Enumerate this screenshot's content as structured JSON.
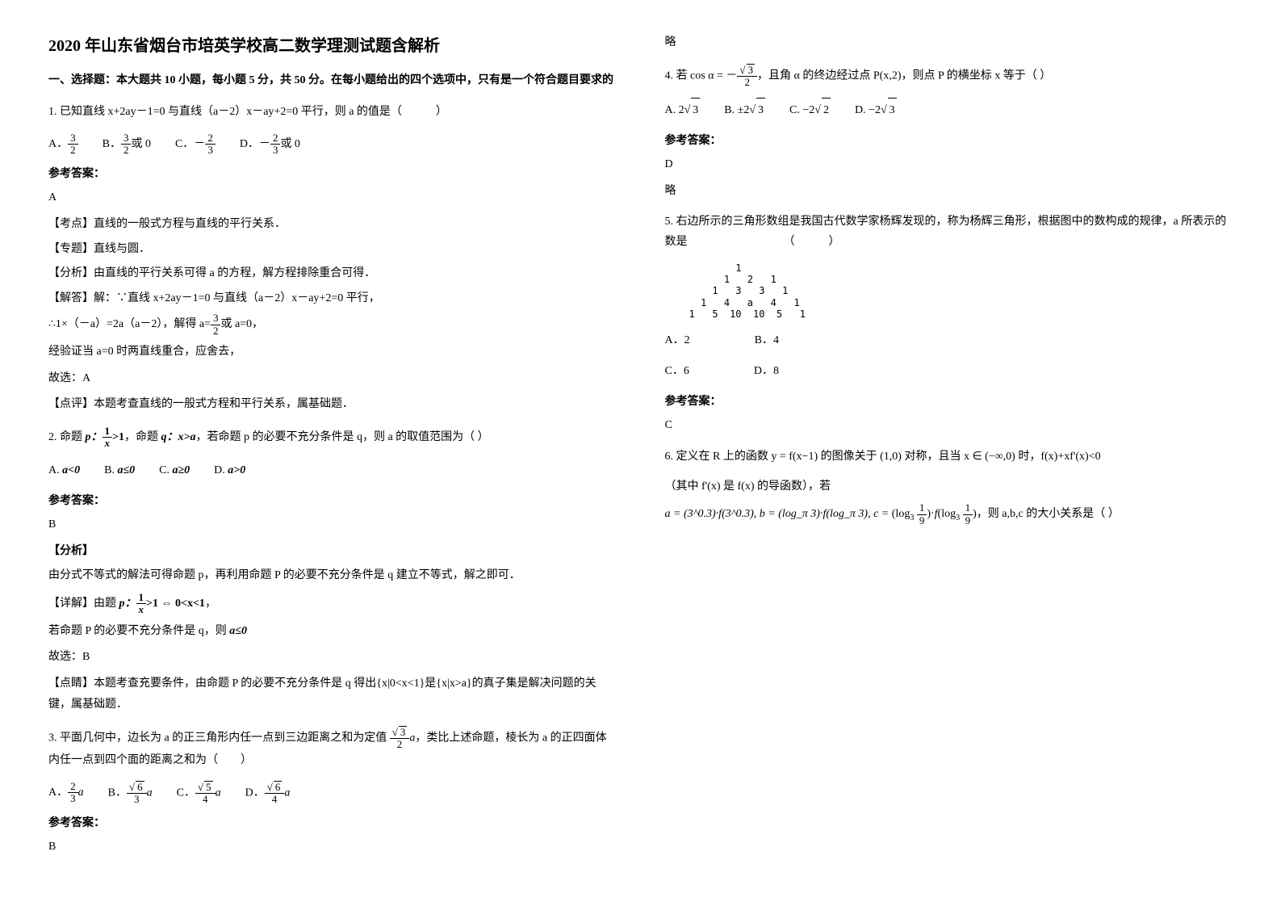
{
  "title": "2020 年山东省烟台市培英学校高二数学理测试题含解析",
  "section1_instr": "一、选择题：本大题共 10 小题，每小题 5 分，共 50 分。在每小题给出的四个选项中，只有是一个符合题目要求的",
  "q1": {
    "stem": "1. 已知直线 x+2ay－1=0 与直线（a－2）x－ay+2=0 平行，则 a 的值是（　　　）",
    "optA_n": "3",
    "optA_d": "2",
    "optB_n": "3",
    "optB_d": "2",
    "optB_suffix": "或 0",
    "optC_val": "－",
    "optC_n": "2",
    "optC_d": "3",
    "optD_val": "－",
    "optD_n": "2",
    "optD_d": "3",
    "optD_suffix": "或 0",
    "ans_label": "参考答案：",
    "ans_letter": "A",
    "tag1": "【考点】直线的一般式方程与直线的平行关系．",
    "tag2": "【专题】直线与圆．",
    "tag3": "【分析】由直线的平行关系可得 a 的方程，解方程排除重合可得．",
    "tag4": "【解答】解：∵直线 x+2ay－1=0 与直线（a－2）x－ay+2=0 平行，",
    "sol1_pre": "∴1×（－a）=2a（a－2），解得 a=",
    "sol1_n": "3",
    "sol1_d": "2",
    "sol1_post": "或 a=0，",
    "sol2": "经验证当 a=0 时两直线重合，应舍去，",
    "sol3": "故选：A",
    "tag5": "【点评】本题考查直线的一般式方程和平行关系，属基础题．"
  },
  "q2": {
    "stem_pre": "2. 命题 ",
    "p_lbl": "p：",
    "p_n": "1",
    "p_d": "x",
    "p_gt": ">1",
    "stem_mid": "，命题 ",
    "q_lbl": "q：x>a",
    "stem_post": "，若命题 p 的必要不充分条件是 q，则 a 的取值范围为（  ）",
    "optA": "a<0",
    "optB": "a≤0",
    "optC": "a≥0",
    "optD": "a>0",
    "ans_label": "参考答案：",
    "ans_letter": "B",
    "tag1": "【分析】",
    "ana": "由分式不等式的解法可得命题 p，再利用命题 P 的必要不充分条件是 q 建立不等式，解之即可．",
    "tag2_pre": "【详解】由题 ",
    "tag2_p": "p：",
    "tag2_n": "1",
    "tag2_d": "x",
    "tag2_mid": ">1 ⇔ 0<x<1",
    "tag2_post": "，",
    "sol1_pre": "若命题 P 的必要不充分条件是 q，则 ",
    "sol1_ineq": "a≤0",
    "sol2": "故选：B",
    "tag3": "【点睛】本题考查充要条件，由命题 P 的必要不充分条件是 q 得出{x|0<x<1}是{x|x>a}的真子集是解决问题的关键，属基础题．"
  },
  "q3": {
    "stem_pre": "3. 平面几何中，边长为 a 的正三角形内任一点到三边距离之和为定值 ",
    "val_n": "√3",
    "val_d": "2",
    "val_post": "a",
    "stem_post": "，类比上述命题，棱长为 a 的正四面体内任一点到四个面的距离之和为（　　）",
    "optA_n": "2",
    "optA_d": "3",
    "optA_post": "a",
    "optB_n": "√6",
    "optB_d": "3",
    "optB_post": "a",
    "optC_n": "√5",
    "optC_d": "4",
    "optC_post": "a",
    "optD_n": "√6",
    "optD_d": "4",
    "optD_post": "a",
    "ans_label": "参考答案：",
    "ans_letter": "B",
    "sol": "略"
  },
  "q4": {
    "stem_pre": "4. 若 ",
    "cos_pre": "cos α = －",
    "cos_n": "√3",
    "cos_d": "2",
    "stem_mid": "，且角 α 的终边经过点 P(x,2)，则点 P 的横坐标 x 等于（  ）",
    "optA": "2√3",
    "optB": "±2√3",
    "optC": "－2√2",
    "optD": "－2√3",
    "ans_label": "参考答案：",
    "ans_letter": "D",
    "sol": "略"
  },
  "q5": {
    "stem": "5. 右边所示的三角形数组是我国古代数学家杨辉发现的，称为杨辉三角形，根据图中的数构成的规律，a 所表示的数是　　　　　　　　　（　　　）",
    "r1": "1",
    "r2": "1   2   1",
    "r3": "1   3   3   1",
    "r4": "1   4   a   4   1",
    "r5": "1   5  10  10  5   1",
    "optA": "A．2",
    "optB": "B．4",
    "optC": "C．6",
    "optD": "D．8",
    "ans_label": "参考答案：",
    "ans_letter": "C"
  },
  "q6": {
    "stem_pre": "6. 定义在 R 上的函数 y = f(x−1) 的图像关于 (1,0) 对称，且当 x ∈ (−∞,0) 时，f(x)+xf'(x)<0",
    "stem_mid": "（其中 f'(x) 是 f(x) 的导函数），若",
    "expr_a": "a = (3^0.3)·f(3^0.3), b = (log_π 3)·f(log_π 3), ",
    "expr_c_pre": "c = ",
    "expr_c": "(log_3 ",
    "c_n": "1",
    "c_d": "9",
    "expr_c_mid": ")·f(log_3 ",
    "c2_n": "1",
    "c2_d": "9",
    "expr_c_post": ")",
    "stem_post": "，则 a,b,c 的大小关系是（  ）"
  }
}
